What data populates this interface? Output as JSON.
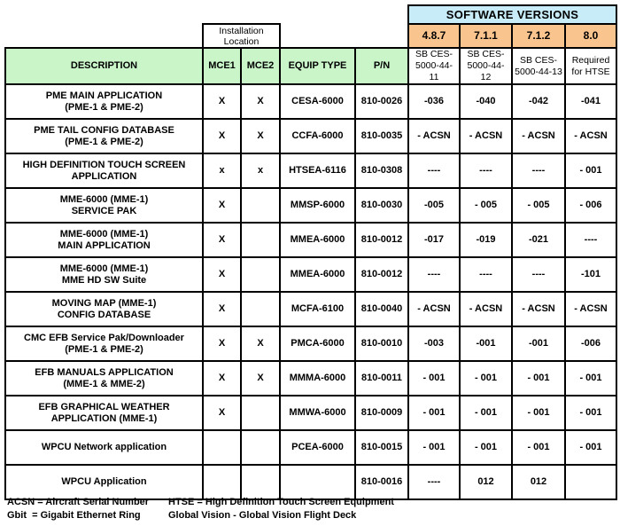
{
  "header": {
    "software_versions_title": "SOFTWARE VERSIONS",
    "installation_location": "Installation\nLocation",
    "versions": [
      "4.8.7",
      "7.1.1",
      "7.1.2",
      "8.0"
    ],
    "columns": [
      "DESCRIPTION",
      "MCE1",
      "MCE2",
      "EQUIP TYPE",
      "P/N"
    ],
    "version_subheaders": [
      "SB CES-\n5000-44-11",
      "SB CES-\n5000-44-12",
      "SB CES-\n5000-44-13",
      "Required\nfor HTSE"
    ]
  },
  "colors": {
    "software_versions_bg": "#c8ecf8",
    "version_row_bg": "#f9c48d",
    "header_row_bg": "#c9f5c9",
    "border": "#000000"
  },
  "rows": [
    {
      "desc": "PME MAIN APPLICATION\n(PME-1 & PME-2)",
      "mce1": "X",
      "mce2": "X",
      "equip": "CESA-6000",
      "pn": "810-0026",
      "v": [
        "-036",
        "-040",
        "-042",
        "-041"
      ]
    },
    {
      "desc": "PME TAIL CONFIG DATABASE\n(PME-1 & PME-2)",
      "mce1": "X",
      "mce2": "X",
      "equip": "CCFA-6000",
      "pn": "810-0035",
      "v": [
        "- ACSN",
        "- ACSN",
        "- ACSN",
        "- ACSN"
      ]
    },
    {
      "desc": "HIGH DEFINITION TOUCH SCREEN\nAPPLICATION",
      "mce1": "x",
      "mce2": "x",
      "equip": "HTSEA-6116",
      "pn": "810-0308",
      "v": [
        "----",
        "----",
        "----",
        "- 001"
      ]
    },
    {
      "desc": "MME-6000 (MME-1)\nSERVICE PAK",
      "mce1": "X",
      "mce2": "",
      "equip": "MMSP-6000",
      "pn": "810-0030",
      "v": [
        "-005",
        "- 005",
        "- 005",
        "- 006"
      ]
    },
    {
      "desc": "MME-6000 (MME-1)\nMAIN APPLICATION",
      "mce1": "X",
      "mce2": "",
      "equip": "MMEA-6000",
      "pn": "810-0012",
      "v": [
        "-017",
        "-019",
        "-021",
        "----"
      ]
    },
    {
      "desc": "MME-6000 (MME-1)\nMME HD SW Suite",
      "mce1": "X",
      "mce2": "",
      "equip": "MMEA-6000",
      "pn": "810-0012",
      "v": [
        "----",
        "----",
        "----",
        "-101"
      ]
    },
    {
      "desc": "MOVING MAP (MME-1)\nCONFIG DATABASE",
      "mce1": "X",
      "mce2": "",
      "equip": "MCFA-6100",
      "pn": "810-0040",
      "v": [
        "- ACSN",
        "- ACSN",
        "- ACSN",
        "- ACSN"
      ]
    },
    {
      "desc": "CMC EFB Service Pak/Downloader\n(PME-1 & PME-2)",
      "mce1": "X",
      "mce2": "X",
      "equip": "PMCA-6000",
      "pn": "810-0010",
      "v": [
        "-003",
        "-001",
        "-001",
        "-006"
      ]
    },
    {
      "desc": "EFB MANUALS APPLICATION\n(MME-1 & MME-2)",
      "mce1": "X",
      "mce2": "X",
      "equip": "MMMA-6000",
      "pn": "810-0011",
      "v": [
        "- 001",
        "- 001",
        "- 001",
        "- 001"
      ]
    },
    {
      "desc": "EFB GRAPHICAL WEATHER\nAPPLICATION (MME-1)",
      "mce1": "X",
      "mce2": "",
      "equip": "MMWA-6000",
      "pn": "810-0009",
      "v": [
        "- 001",
        "- 001",
        "- 001",
        "- 001"
      ]
    },
    {
      "desc": "WPCU Network application",
      "mce1": "",
      "mce2": "",
      "equip": "PCEA-6000",
      "pn": "810-0015",
      "v": [
        "- 001",
        "- 001",
        "- 001",
        "- 001"
      ]
    },
    {
      "desc": "WPCU Application",
      "mce1": "",
      "mce2": "",
      "equip": "",
      "pn": "810-0016",
      "v": [
        "----",
        "012",
        "012",
        ""
      ]
    }
  ],
  "footer": {
    "line1_left": "ACSN = Aircraft Serial Number",
    "line1_right": "HTSE = High Definition Touch Screen Equipment",
    "line2_left": "Gbit  = Gigabit Ethernet Ring",
    "line2_right": "Global Vision - Global Vision Flight Deck"
  }
}
